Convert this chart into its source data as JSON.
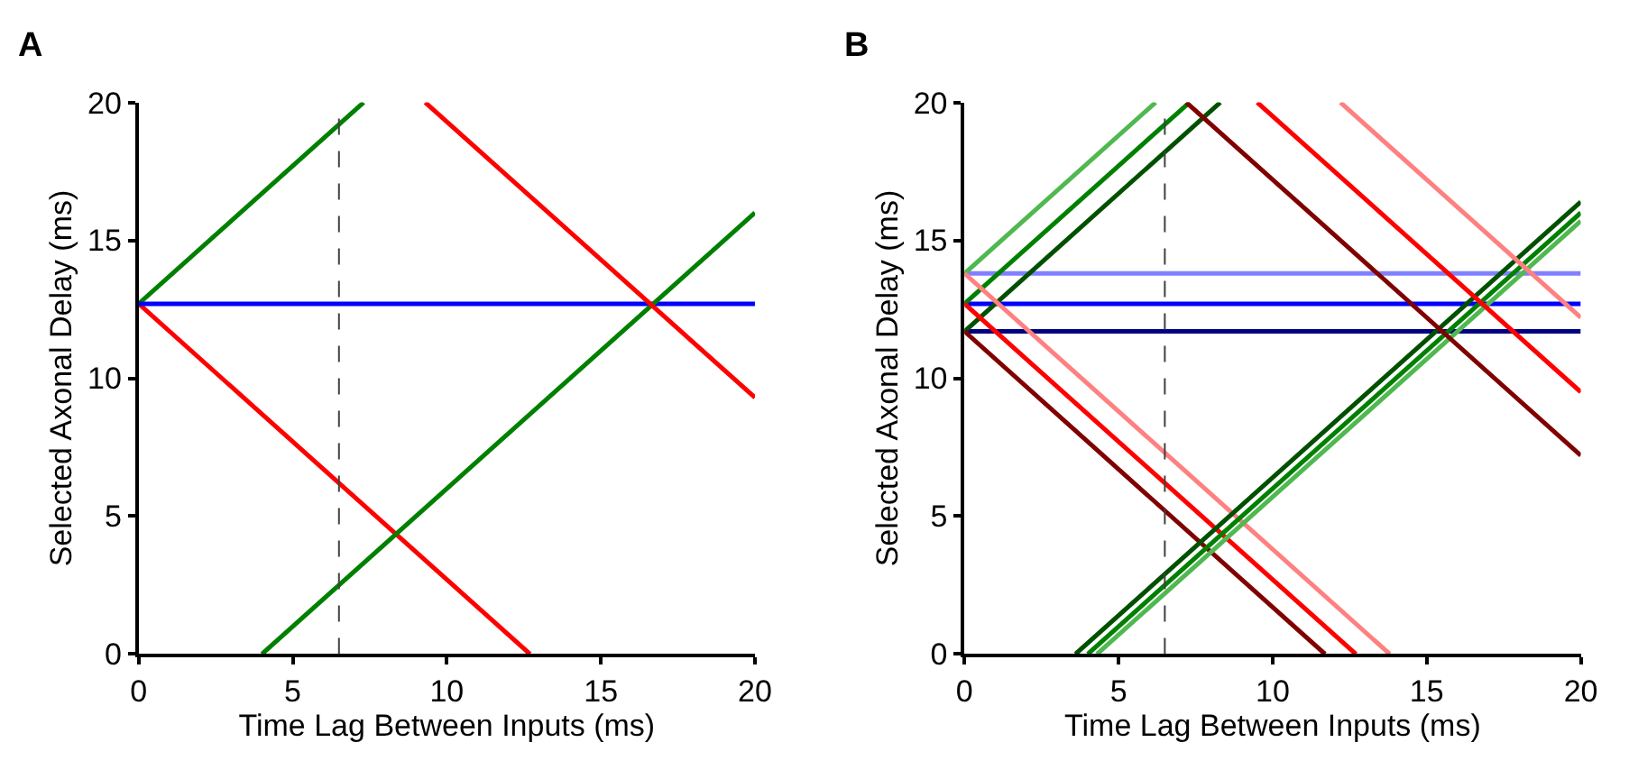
{
  "chart_data": [
    {
      "type": "line",
      "title": "A",
      "xlabel": "Time Lag Between Inputs (ms)",
      "ylabel": "Selected Axonal Delay (ms)",
      "xlim": [
        0,
        20
      ],
      "ylim": [
        0,
        20
      ],
      "xticks": [
        0,
        5,
        10,
        15,
        20
      ],
      "yticks": [
        0,
        5,
        10,
        15,
        20
      ],
      "marker": "none",
      "line_style": "solid",
      "ref_lines": [
        {
          "axis": "x",
          "value": 6.5,
          "color": "#404040",
          "line_style": "dashed"
        }
      ],
      "series": [
        {
          "color": "#008000",
          "x": [
            0,
            7.3
          ],
          "values": [
            12.7,
            20
          ]
        },
        {
          "color": "#ff0000",
          "x": [
            0,
            12.7
          ],
          "values": [
            12.7,
            0
          ]
        },
        {
          "color": "#0000ff",
          "x": [
            0,
            20
          ],
          "values": [
            12.7,
            12.7
          ]
        },
        {
          "color": "#008000",
          "x": [
            4,
            20
          ],
          "values": [
            0,
            16
          ]
        },
        {
          "color": "#ff0000",
          "x": [
            9.3,
            20
          ],
          "values": [
            20,
            9.3
          ]
        }
      ]
    },
    {
      "type": "line",
      "title": "B",
      "xlabel": "Time Lag Between Inputs (ms)",
      "ylabel": "Selected Axonal Delay (ms)",
      "xlim": [
        0,
        20
      ],
      "ylim": [
        0,
        20
      ],
      "xticks": [
        0,
        5,
        10,
        15,
        20
      ],
      "yticks": [
        0,
        5,
        10,
        15,
        20
      ],
      "marker": "none",
      "line_style": "solid",
      "ref_lines": [
        {
          "axis": "x",
          "value": 6.5,
          "color": "#404040",
          "line_style": "dashed"
        }
      ],
      "series": [
        {
          "color": "#8080ff",
          "x": [
            0,
            20
          ],
          "values": [
            13.8,
            13.8
          ]
        },
        {
          "color": "#0000ff",
          "x": [
            0,
            20
          ],
          "values": [
            12.7,
            12.7
          ]
        },
        {
          "color": "#000080",
          "x": [
            0,
            20
          ],
          "values": [
            11.7,
            11.7
          ]
        },
        {
          "color": "#50b850",
          "x": [
            0,
            6.2
          ],
          "values": [
            13.8,
            20
          ]
        },
        {
          "color": "#008000",
          "x": [
            0,
            7.3
          ],
          "values": [
            12.7,
            20
          ]
        },
        {
          "color": "#005000",
          "x": [
            0,
            8.3
          ],
          "values": [
            11.7,
            20
          ]
        },
        {
          "color": "#ff8080",
          "x": [
            0,
            13.8
          ],
          "values": [
            13.8,
            0
          ]
        },
        {
          "color": "#ff0000",
          "x": [
            0,
            12.7
          ],
          "values": [
            12.7,
            0
          ]
        },
        {
          "color": "#800000",
          "x": [
            0,
            11.7
          ],
          "values": [
            11.7,
            0
          ]
        },
        {
          "color": "#005000",
          "x": [
            3.6,
            20
          ],
          "values": [
            0,
            16.4
          ]
        },
        {
          "color": "#008000",
          "x": [
            4,
            20
          ],
          "values": [
            0,
            16
          ]
        },
        {
          "color": "#50b850",
          "x": [
            4.3,
            20
          ],
          "values": [
            0,
            15.7
          ]
        },
        {
          "color": "#800000",
          "x": [
            7.2,
            20
          ],
          "values": [
            20,
            7.2
          ]
        },
        {
          "color": "#ff0000",
          "x": [
            9.5,
            20
          ],
          "values": [
            20,
            9.5
          ]
        },
        {
          "color": "#ff8080",
          "x": [
            12.2,
            20
          ],
          "values": [
            20,
            12.2
          ]
        }
      ]
    }
  ]
}
